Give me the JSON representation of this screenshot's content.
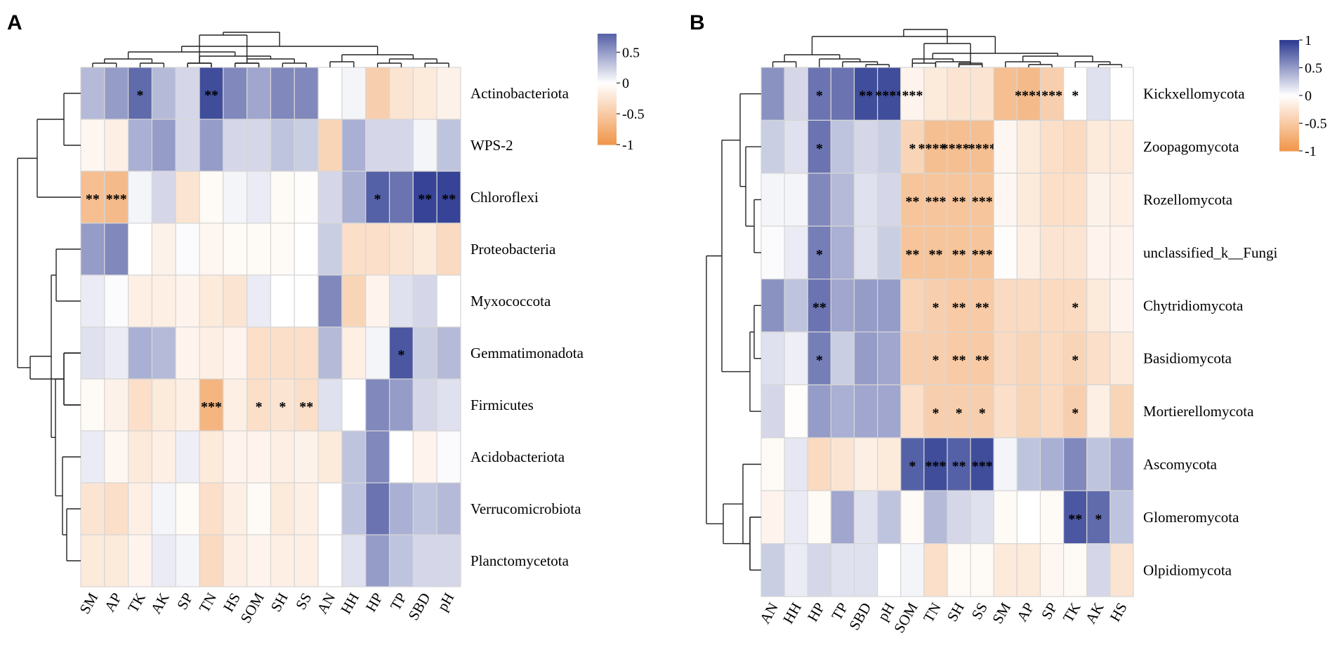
{
  "chart_data": [
    {
      "type": "heatmap",
      "panel": "A",
      "columns": [
        "SM",
        "AP",
        "TK",
        "AK",
        "SP",
        "TN",
        "HS",
        "SOM",
        "SH",
        "SS",
        "AN",
        "HH",
        "HP",
        "TP",
        "SBD",
        "pH"
      ],
      "rows": [
        "Actinobacteriota",
        "WPS-2",
        "Chloroflexi",
        "Proteobacteria",
        "Myxococcota",
        "Gemmatimonadota",
        "Firmicutes",
        "Acidobacteriota",
        "Verrucomicrobiota",
        "Planctomycetota"
      ],
      "values": [
        [
          0.35,
          0.5,
          0.75,
          0.35,
          0.2,
          0.9,
          0.6,
          0.45,
          0.6,
          0.6,
          0.0,
          0.05,
          -0.45,
          -0.25,
          -0.2,
          -0.12
        ],
        [
          -0.08,
          -0.15,
          0.4,
          0.5,
          0.2,
          0.5,
          0.2,
          0.2,
          0.3,
          0.25,
          -0.4,
          0.4,
          0.2,
          0.2,
          0.05,
          0.3
        ],
        [
          -0.6,
          -0.65,
          0.05,
          0.2,
          -0.25,
          -0.05,
          0.05,
          0.1,
          -0.05,
          -0.02,
          0.2,
          0.4,
          0.8,
          0.7,
          0.95,
          0.95
        ],
        [
          0.5,
          0.6,
          0.0,
          -0.12,
          0.02,
          -0.08,
          -0.05,
          -0.05,
          -0.05,
          0.0,
          0.25,
          -0.3,
          -0.3,
          -0.25,
          -0.2,
          -0.35
        ],
        [
          0.1,
          0.02,
          -0.15,
          -0.15,
          -0.1,
          -0.2,
          -0.25,
          0.1,
          0.0,
          0.0,
          0.6,
          -0.4,
          -0.1,
          0.15,
          0.2,
          0.0
        ],
        [
          0.15,
          0.1,
          0.4,
          0.35,
          -0.1,
          -0.15,
          -0.1,
          -0.3,
          -0.3,
          -0.3,
          0.35,
          -0.15,
          0.05,
          0.85,
          0.25,
          0.35
        ],
        [
          -0.05,
          -0.12,
          -0.3,
          -0.2,
          -0.15,
          -0.7,
          -0.15,
          -0.3,
          -0.25,
          -0.3,
          0.15,
          0.0,
          0.6,
          0.5,
          0.2,
          0.15
        ],
        [
          0.1,
          -0.08,
          -0.2,
          -0.15,
          0.08,
          -0.2,
          -0.1,
          -0.1,
          -0.15,
          -0.12,
          -0.2,
          0.3,
          0.6,
          0.0,
          -0.1,
          0.02
        ],
        [
          -0.25,
          -0.3,
          -0.15,
          0.05,
          -0.05,
          -0.3,
          -0.15,
          -0.05,
          -0.2,
          -0.15,
          0.0,
          0.3,
          0.7,
          0.4,
          0.3,
          0.35
        ],
        [
          -0.2,
          -0.2,
          -0.1,
          0.1,
          0.05,
          -0.35,
          -0.15,
          -0.1,
          -0.15,
          -0.15,
          0.0,
          0.15,
          0.5,
          0.3,
          0.2,
          0.2
        ]
      ],
      "significance": [
        [
          "",
          "",
          "*",
          "",
          "",
          "**",
          "",
          "",
          "",
          "",
          "",
          "",
          "",
          "",
          "",
          ""
        ],
        [
          "",
          "",
          "",
          "",
          "",
          "",
          "",
          "",
          "",
          "",
          "",
          "",
          "",
          "",
          "",
          ""
        ],
        [
          "**",
          "***",
          "",
          "",
          "",
          "",
          "",
          "",
          "",
          "",
          "",
          "",
          "*",
          "",
          "**",
          "**"
        ],
        [
          "",
          "",
          "",
          "",
          "",
          "",
          "",
          "",
          "",
          "",
          "",
          "",
          "",
          "",
          "",
          ""
        ],
        [
          "",
          "",
          "",
          "",
          "",
          "",
          "",
          "",
          "",
          "",
          "",
          "",
          "",
          "",
          "",
          ""
        ],
        [
          "",
          "",
          "",
          "",
          "",
          "",
          "",
          "",
          "",
          "",
          "",
          "",
          "",
          "*",
          "",
          ""
        ],
        [
          "",
          "",
          "",
          "",
          "",
          "***",
          "",
          "*",
          "*",
          "**",
          "",
          "",
          "",
          "",
          "",
          ""
        ],
        [
          "",
          "",
          "",
          "",
          "",
          "",
          "",
          "",
          "",
          "",
          "",
          "",
          "",
          "",
          "",
          ""
        ],
        [
          "",
          "",
          "",
          "",
          "",
          "",
          "",
          "",
          "",
          "",
          "",
          "",
          "",
          "",
          "",
          ""
        ],
        [
          "",
          "",
          "",
          "",
          "",
          "",
          "",
          "",
          "",
          "",
          "",
          "",
          "",
          "",
          "",
          ""
        ]
      ],
      "legend": {
        "ticks": [
          "0.5",
          "0",
          "-0.5",
          "-1"
        ],
        "tick_values": [
          0.5,
          0,
          -0.5,
          -1
        ],
        "range": [
          -1,
          0.8
        ]
      }
    },
    {
      "type": "heatmap",
      "panel": "B",
      "columns": [
        "AN",
        "HH",
        "HP",
        "TP",
        "SBD",
        "pH",
        "SOM",
        "TN",
        "SH",
        "SS",
        "SM",
        "AP",
        "SP",
        "TK",
        "AK",
        "HS"
      ],
      "rows": [
        "Kickxellomycota",
        "Zoopagomycota",
        "Rozellomycota",
        "unclassified_k__Fungi",
        "Chytridiomycota",
        "Basidiomycota",
        "Mortierellomycota",
        "Ascomycota",
        "Glomeromycota",
        "Olpidiomycota"
      ],
      "values": [
        [
          0.55,
          0.2,
          0.7,
          0.7,
          0.9,
          0.9,
          -0.1,
          -0.2,
          -0.25,
          -0.25,
          -0.6,
          -0.65,
          -0.45,
          0.0,
          0.15,
          0.0
        ],
        [
          0.25,
          0.15,
          0.7,
          0.3,
          0.2,
          0.25,
          -0.4,
          -0.6,
          -0.6,
          -0.6,
          -0.08,
          -0.2,
          -0.3,
          -0.35,
          -0.2,
          -0.2
        ],
        [
          0.05,
          0.05,
          0.6,
          0.35,
          0.15,
          0.2,
          -0.55,
          -0.55,
          -0.55,
          -0.55,
          -0.08,
          -0.2,
          -0.3,
          -0.3,
          -0.12,
          -0.15
        ],
        [
          0.02,
          0.1,
          0.65,
          0.4,
          0.15,
          0.25,
          -0.55,
          -0.55,
          -0.55,
          -0.55,
          -0.02,
          -0.15,
          -0.25,
          -0.25,
          -0.1,
          -0.1
        ],
        [
          0.55,
          0.3,
          0.7,
          0.45,
          0.5,
          0.5,
          -0.4,
          -0.45,
          -0.5,
          -0.5,
          -0.35,
          -0.35,
          -0.35,
          -0.35,
          -0.2,
          -0.1
        ],
        [
          0.15,
          0.08,
          0.65,
          0.25,
          0.5,
          0.45,
          -0.45,
          -0.45,
          -0.5,
          -0.5,
          -0.35,
          -0.4,
          -0.35,
          -0.4,
          -0.3,
          -0.2
        ],
        [
          0.2,
          -0.02,
          0.5,
          0.4,
          0.45,
          0.45,
          -0.3,
          -0.45,
          -0.45,
          -0.45,
          -0.3,
          -0.4,
          -0.35,
          -0.45,
          -0.15,
          -0.4
        ],
        [
          -0.05,
          0.12,
          -0.35,
          -0.25,
          -0.15,
          -0.2,
          0.8,
          0.9,
          0.8,
          0.9,
          0.05,
          0.3,
          0.4,
          0.6,
          0.3,
          0.45
        ],
        [
          -0.1,
          0.1,
          -0.05,
          0.45,
          0.15,
          0.3,
          -0.05,
          0.35,
          0.2,
          0.15,
          -0.05,
          0.0,
          -0.05,
          0.85,
          0.75,
          0.3
        ],
        [
          0.25,
          0.1,
          0.2,
          0.15,
          0.15,
          0.0,
          0.05,
          -0.3,
          -0.05,
          -0.05,
          -0.2,
          -0.2,
          -0.08,
          -0.05,
          0.2,
          -0.25
        ]
      ],
      "significance": [
        [
          "",
          "",
          "*",
          "",
          "**",
          "****",
          "***",
          "",
          "",
          "",
          "",
          "****",
          "***",
          "*",
          "",
          ""
        ],
        [
          "",
          "",
          "*",
          "",
          "",
          "",
          "*",
          "*****",
          "*****",
          "****",
          "",
          "",
          "",
          "",
          "",
          ""
        ],
        [
          "",
          "",
          "",
          "",
          "",
          "",
          "**",
          "***",
          "**",
          "***",
          "",
          "",
          "",
          "",
          "",
          ""
        ],
        [
          "",
          "",
          "*",
          "",
          "",
          "",
          "**",
          "**",
          "**",
          "***",
          "",
          "",
          "",
          "",
          "",
          ""
        ],
        [
          "",
          "",
          "**",
          "",
          "",
          "",
          "",
          "*",
          "**",
          "**",
          "",
          "",
          "",
          "*",
          "",
          ""
        ],
        [
          "",
          "",
          "*",
          "",
          "",
          "",
          "",
          "*",
          "**",
          "**",
          "",
          "",
          "",
          "*",
          "",
          ""
        ],
        [
          "",
          "",
          "",
          "",
          "",
          "",
          "",
          "*",
          "*",
          "*",
          "",
          "",
          "",
          "*",
          "",
          ""
        ],
        [
          "",
          "",
          "",
          "",
          "",
          "",
          "*",
          "***",
          "**",
          "***",
          "",
          "",
          "",
          "",
          "",
          ""
        ],
        [
          "",
          "",
          "",
          "",
          "",
          "",
          "",
          "",
          "",
          "",
          "",
          "",
          "",
          "**",
          "*",
          ""
        ],
        [
          "",
          "",
          "",
          "",
          "",
          "",
          "",
          "",
          "",
          "",
          "",
          "",
          "",
          "",
          "",
          ""
        ]
      ],
      "legend": {
        "ticks": [
          "1",
          "0.5",
          "0",
          "-0.5",
          "-1"
        ],
        "tick_values": [
          1,
          0.5,
          0,
          -0.5,
          -1
        ],
        "range": [
          -1,
          1
        ]
      }
    }
  ],
  "colors": {
    "positive": "#2b3990",
    "neutral": "#ffffff",
    "negative": "#f0954a",
    "grid": "#d6d6d6",
    "ink": "#000000"
  }
}
